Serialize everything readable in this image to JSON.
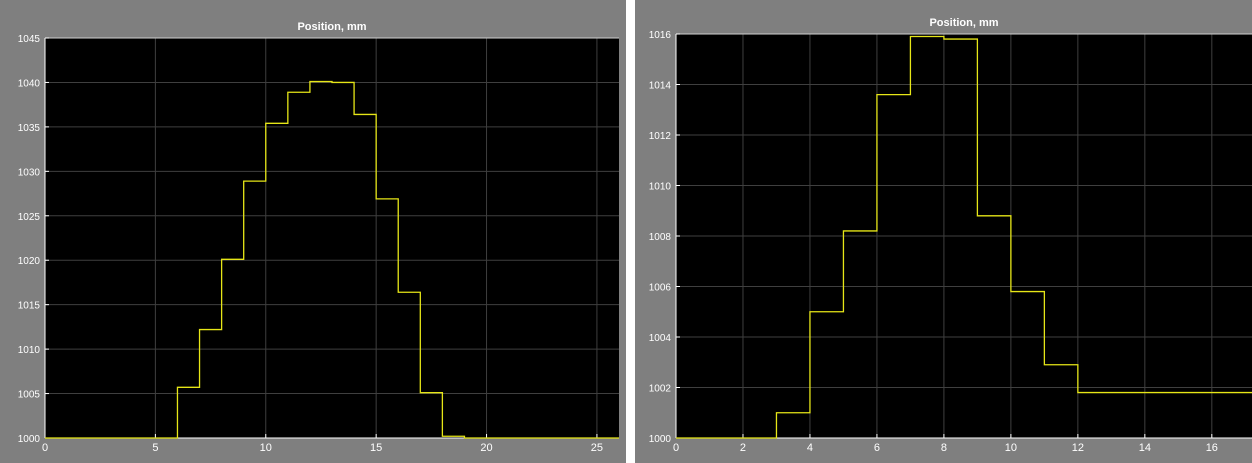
{
  "chart_data": [
    {
      "type": "line",
      "step": true,
      "title": "Position, mm",
      "xlabel": "",
      "ylabel": "",
      "xlim": [
        0,
        26
      ],
      "ylim": [
        1000,
        1045
      ],
      "xticks": [
        0,
        5,
        10,
        15,
        20,
        25
      ],
      "yticks": [
        1000,
        1005,
        1010,
        1015,
        1020,
        1025,
        1030,
        1035,
        1040,
        1045
      ],
      "grid": true,
      "series": [
        {
          "name": "",
          "color": "#e6e617",
          "x": [
            0,
            1,
            2,
            3,
            4,
            5,
            6,
            7,
            8,
            9,
            10,
            11,
            12,
            13,
            14,
            15,
            16,
            17,
            18,
            19,
            20,
            21,
            22,
            23,
            24,
            25,
            26
          ],
          "y": [
            1000,
            1000,
            1000,
            1000,
            1000,
            1000,
            1005.7,
            1012.2,
            1020.1,
            1028.9,
            1035.4,
            1038.9,
            1040.1,
            1040.0,
            1036.4,
            1026.9,
            1016.4,
            1005.1,
            1000.2,
            1000.0,
            1000,
            1000,
            1000,
            1000,
            1000,
            1000,
            1000
          ]
        }
      ]
    },
    {
      "type": "line",
      "step": true,
      "title": "Position, mm",
      "xlabel": "",
      "ylabel": "",
      "xlim": [
        0,
        17.2
      ],
      "ylim": [
        1000,
        1016
      ],
      "xticks": [
        0,
        2,
        4,
        6,
        8,
        10,
        12,
        14,
        16
      ],
      "yticks": [
        1000,
        1002,
        1004,
        1006,
        1008,
        1010,
        1012,
        1014,
        1016
      ],
      "grid": true,
      "series": [
        {
          "name": "",
          "color": "#e6e617",
          "x": [
            0,
            1,
            2,
            3,
            4,
            5,
            6,
            7,
            8,
            9,
            10,
            11,
            12,
            13,
            14,
            15,
            16,
            17,
            17.2
          ],
          "y": [
            1000,
            1000,
            1000,
            1001.0,
            1005.0,
            1008.2,
            1013.6,
            1015.9,
            1015.8,
            1008.8,
            1005.8,
            1002.9,
            1001.8,
            1001.8,
            1001.8,
            1001.8,
            1001.8,
            1001.8,
            1001.8
          ]
        }
      ]
    }
  ]
}
